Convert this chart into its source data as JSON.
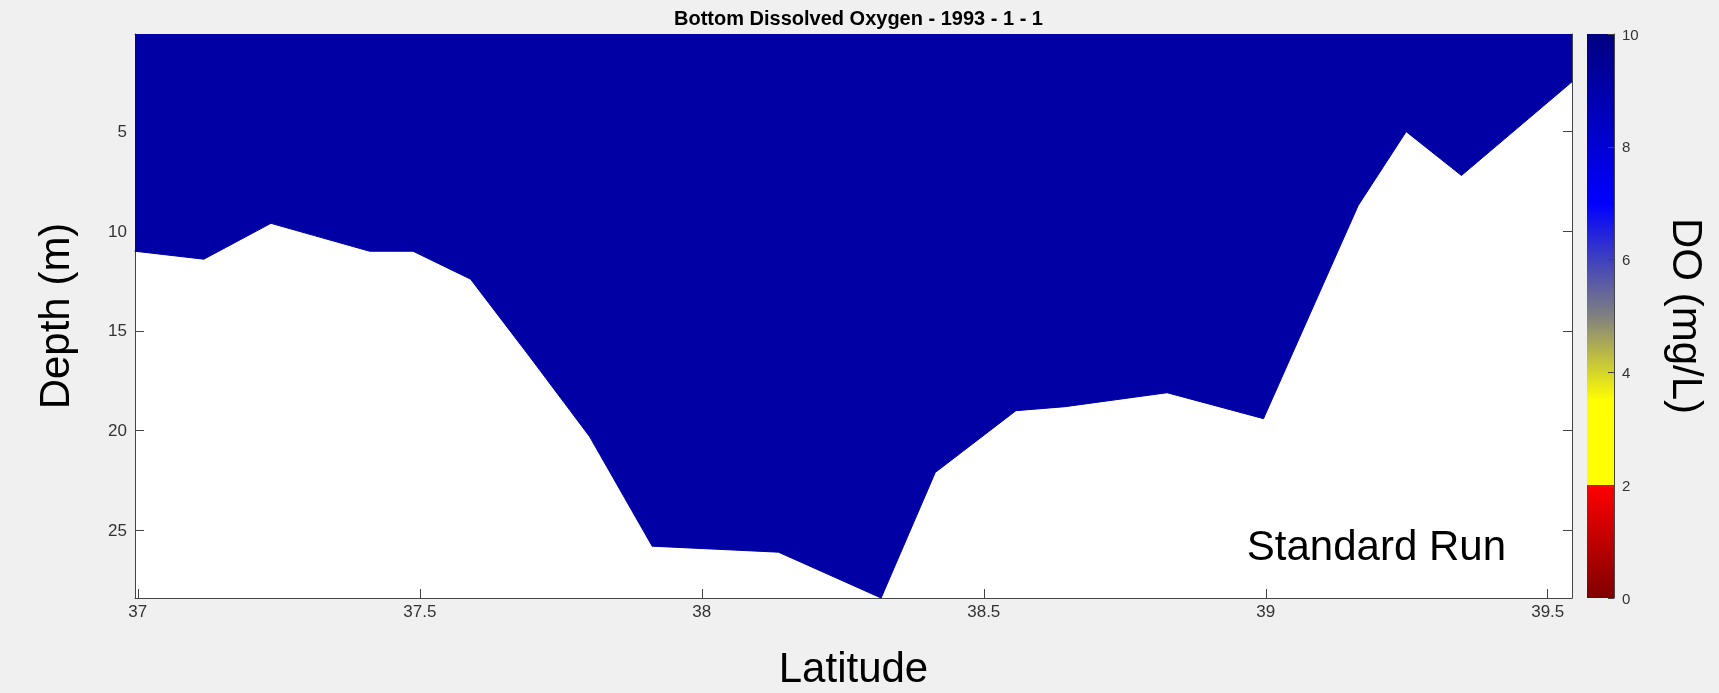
{
  "chart_data": {
    "type": "area",
    "title": "Bottom Dissolved Oxygen - 1993 - 1 - 1",
    "xlabel": "Latitude",
    "ylabel": "Depth (m)",
    "clabel": "DO (mg/L)",
    "annotations": [
      "Standard Run"
    ],
    "x": [
      36.995,
      37.117,
      37.236,
      37.411,
      37.488,
      37.59,
      37.695,
      37.801,
      37.912,
      38.136,
      38.318,
      38.414,
      38.557,
      38.644,
      38.825,
      38.996,
      39.164,
      39.249,
      39.347,
      39.543
    ],
    "values": [
      11.0,
      11.4,
      9.6,
      11.0,
      11.0,
      12.4,
      16.3,
      20.3,
      25.8,
      26.1,
      28.4,
      22.1,
      19.0,
      18.8,
      18.1,
      19.4,
      8.7,
      5.0,
      7.2,
      2.5
    ],
    "color": "#0000a5",
    "xlim": [
      36.995,
      39.543
    ],
    "ylim": [
      28.4,
      0.1
    ],
    "xticks": [
      37,
      37.5,
      38,
      38.5,
      39,
      39.5
    ],
    "yticks": [
      5,
      10,
      15,
      20,
      25
    ],
    "clim": [
      0,
      10
    ],
    "cticks": [
      0,
      2,
      4,
      6,
      8,
      10
    ],
    "grid": false
  }
}
